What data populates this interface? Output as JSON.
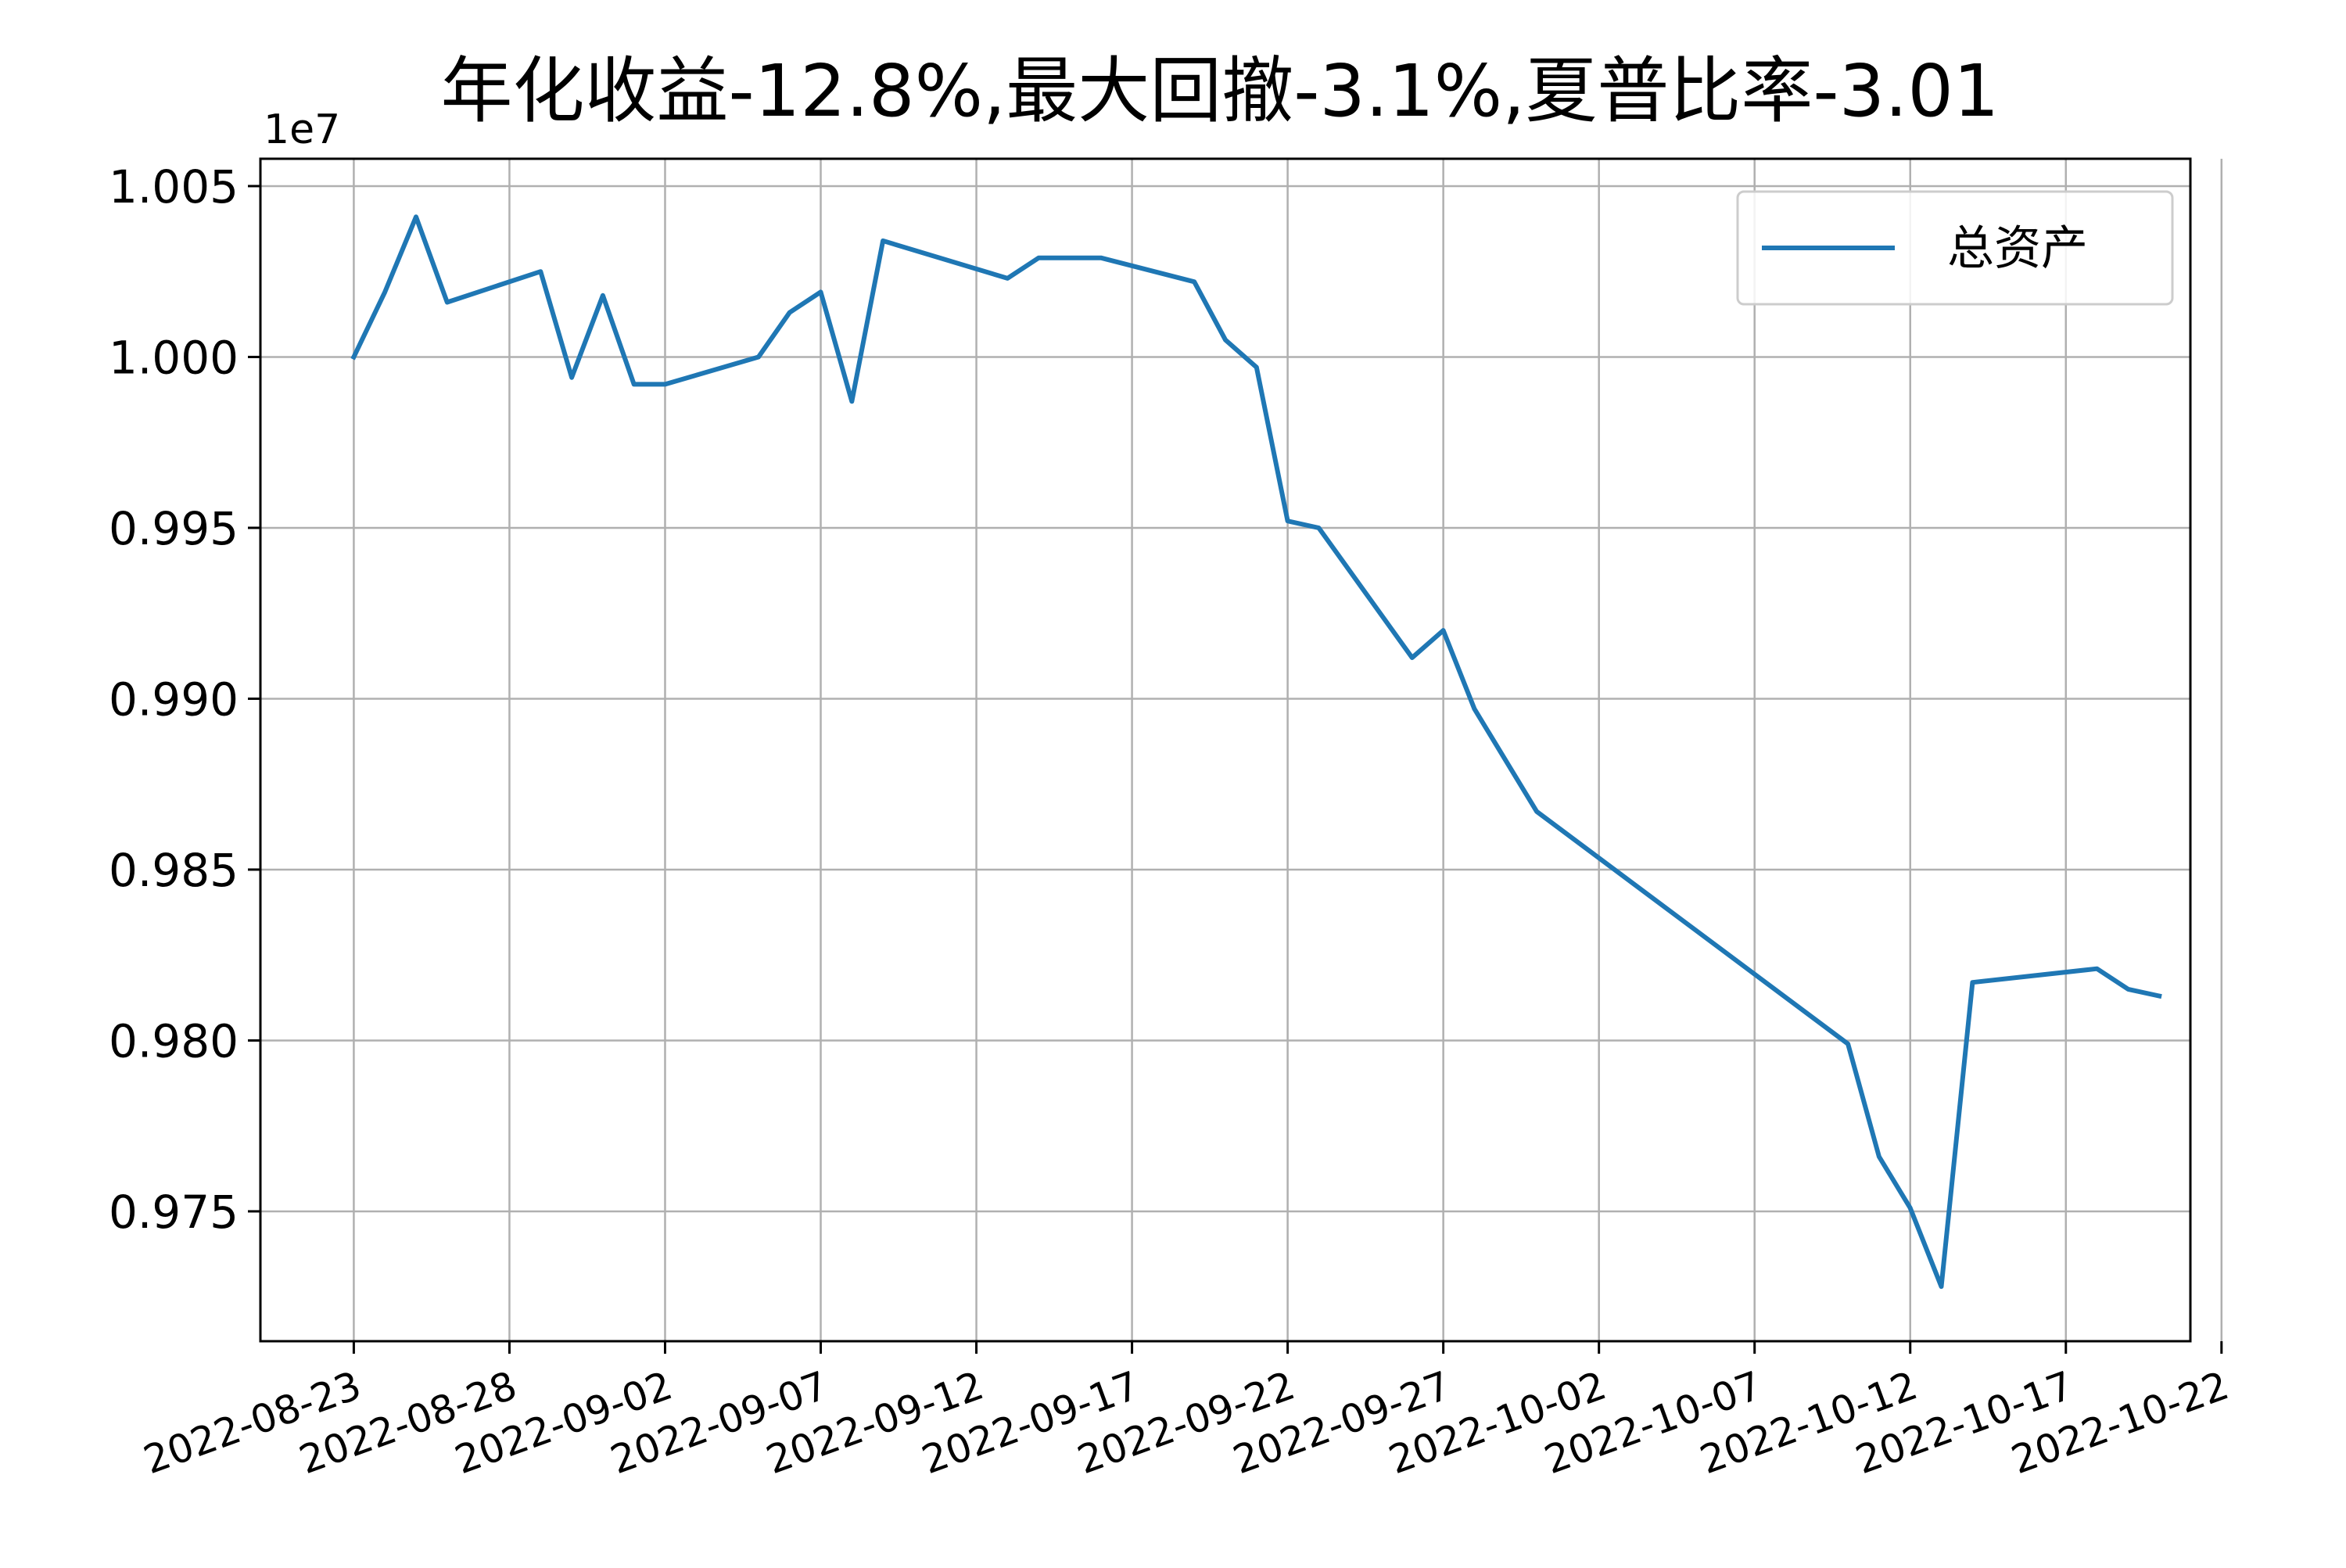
{
  "chart_data": {
    "type": "line",
    "title": "年化收益-12.8%,最大回撤-3.1%,夏普比率-3.01",
    "xlabel": "",
    "ylabel": "",
    "y_scale_label": "1e7",
    "y_scale": 10000000,
    "ylim": [
      0.9712,
      1.0058
    ],
    "xlim": [
      "2022-08-20",
      "2022-10-21"
    ],
    "grid": true,
    "legend_position": "upper-right",
    "x_ticks": [
      "2022-08-23",
      "2022-08-28",
      "2022-09-02",
      "2022-09-07",
      "2022-09-12",
      "2022-09-17",
      "2022-09-22",
      "2022-09-27",
      "2022-10-02",
      "2022-10-07",
      "2022-10-12",
      "2022-10-17",
      "2022-10-22"
    ],
    "y_ticks": [
      0.975,
      0.98,
      0.985,
      0.99,
      0.995,
      1.0,
      1.005
    ],
    "y_tick_labels": [
      "0.975",
      "0.980",
      "0.985",
      "0.990",
      "0.995",
      "1.000",
      "1.005"
    ],
    "series": [
      {
        "name": "总资产",
        "color": "#1f77b4",
        "x": [
          "2022-08-23",
          "2022-08-24",
          "2022-08-25",
          "2022-08-26",
          "2022-08-29",
          "2022-08-30",
          "2022-08-31",
          "2022-09-01",
          "2022-09-02",
          "2022-09-05",
          "2022-09-06",
          "2022-09-07",
          "2022-09-08",
          "2022-09-09",
          "2022-09-13",
          "2022-09-14",
          "2022-09-15",
          "2022-09-16",
          "2022-09-19",
          "2022-09-20",
          "2022-09-21",
          "2022-09-22",
          "2022-09-23",
          "2022-09-26",
          "2022-09-27",
          "2022-09-28",
          "2022-09-30",
          "2022-10-10",
          "2022-10-11",
          "2022-10-12",
          "2022-10-13",
          "2022-10-14",
          "2022-10-18",
          "2022-10-19",
          "2022-10-20"
        ],
        "values": [
          1.0,
          1.0019,
          1.0041,
          1.0016,
          1.0025,
          0.9994,
          1.0018,
          0.9992,
          0.9992,
          1.0,
          1.0013,
          1.0019,
          0.9987,
          1.0034,
          1.0023,
          1.0029,
          1.0029,
          1.0029,
          1.0022,
          1.0005,
          0.9997,
          0.9952,
          0.995,
          0.9912,
          0.992,
          0.9897,
          0.9867,
          0.9799,
          0.9766,
          0.9751,
          0.9728,
          0.9817,
          0.9821,
          0.9815,
          0.9813
        ]
      }
    ]
  }
}
